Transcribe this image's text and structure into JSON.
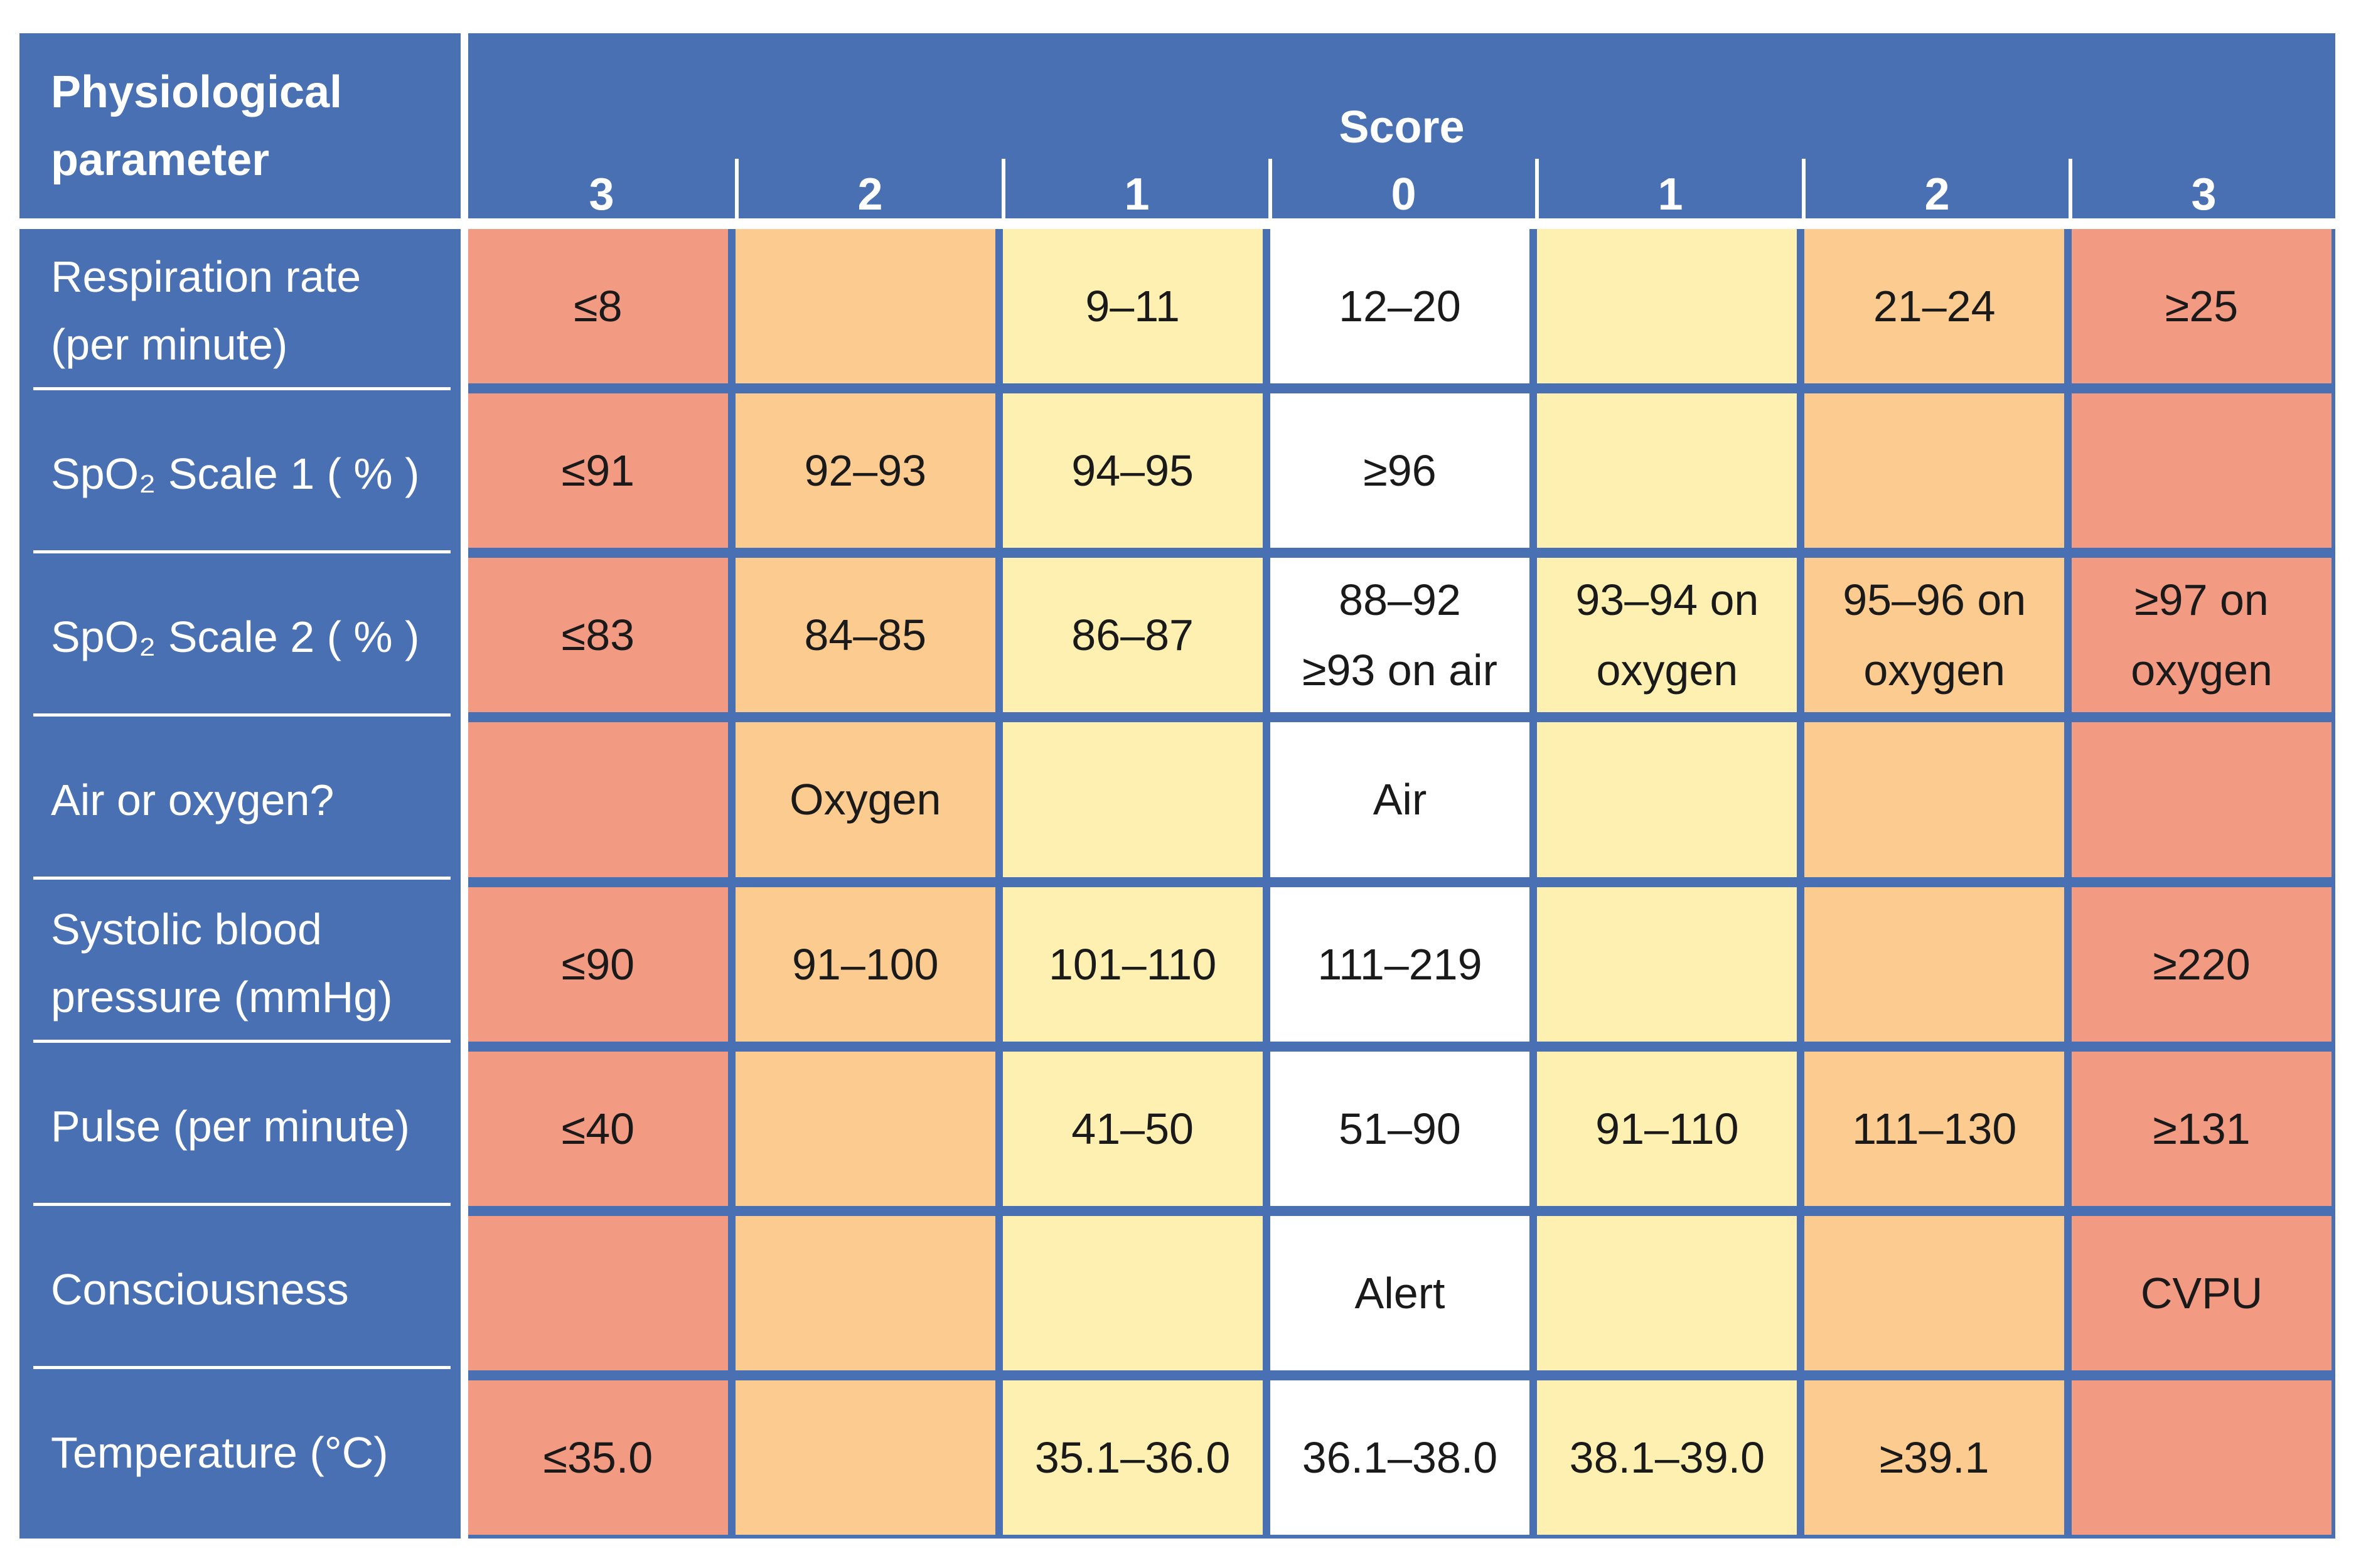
{
  "header": {
    "parameter_label": "Physiological parameter",
    "score_label": "Score",
    "scores": [
      "3",
      "2",
      "1",
      "0",
      "1",
      "2",
      "3"
    ]
  },
  "rows": [
    {
      "parameter": "Respiration rate (per minute)",
      "cells": [
        "≤8",
        null,
        "9–11",
        "12–20",
        null,
        "21–24",
        "≥25"
      ]
    },
    {
      "parameter": "SpO₂ Scale 1 ( % )",
      "cells": [
        "≤91",
        "92–93",
        "94–95",
        "≥96",
        null,
        null,
        null
      ]
    },
    {
      "parameter": "SpO₂ Scale 2 ( % )",
      "cells": [
        "≤83",
        "84–85",
        "86–87",
        "88–92\n≥93 on air",
        "93–94 on oxygen",
        "95–96 on oxygen",
        "≥97 on oxygen"
      ]
    },
    {
      "parameter": "Air or oxygen?",
      "cells": [
        null,
        "Oxygen",
        null,
        "Air",
        null,
        null,
        null
      ]
    },
    {
      "parameter": "Systolic blood pressure (mmHg)",
      "cells": [
        "≤90",
        "91–100",
        "101–110",
        "111–219",
        null,
        null,
        "≥220"
      ]
    },
    {
      "parameter": "Pulse (per minute)",
      "cells": [
        "≤40",
        null,
        "41–50",
        "51–90",
        "91–110",
        "111–130",
        "≥131"
      ]
    },
    {
      "parameter": "Consciousness",
      "cells": [
        null,
        null,
        null,
        "Alert",
        null,
        null,
        "CVPU"
      ]
    },
    {
      "parameter": "Temperature (°C)",
      "cells": [
        "≤35.0",
        null,
        "35.1–36.0",
        "36.1–38.0",
        "38.1–39.0",
        "≥39.1",
        null
      ]
    }
  ]
}
